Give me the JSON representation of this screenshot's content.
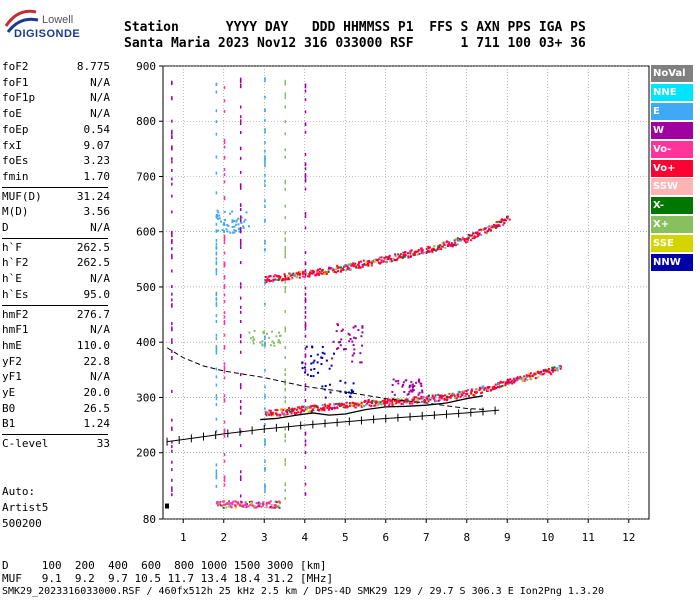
{
  "logo": {
    "word": "Lowell",
    "brand": "DIGISONDE"
  },
  "header": {
    "labels": "Station      YYYY DAY   DDD HHMMSS P1  FFS S AXN PPS IGA PS",
    "values": "Santa Maria 2023 Nov12 316 033000 RSF      1 711 100 03+ 36"
  },
  "params": [
    {
      "k": "foF2",
      "v": "8.775"
    },
    {
      "k": "foF1",
      "v": "N/A"
    },
    {
      "k": "foF1p",
      "v": "N/A"
    },
    {
      "k": "foE",
      "v": "N/A"
    },
    {
      "k": "foEp",
      "v": "0.54"
    },
    {
      "k": "fxI",
      "v": "9.07"
    },
    {
      "k": "foEs",
      "v": "3.23"
    },
    {
      "k": "fmin",
      "v": "1.70"
    },
    {
      "k": "MUF(D)",
      "v": "31.24"
    },
    {
      "k": "M(D)",
      "v": "3.56"
    },
    {
      "k": "D",
      "v": "N/A"
    },
    {
      "k": "h`F",
      "v": "262.5"
    },
    {
      "k": "h`F2",
      "v": "262.5"
    },
    {
      "k": "h`E",
      "v": "N/A"
    },
    {
      "k": "h`Es",
      "v": "95.0"
    },
    {
      "k": "hmF2",
      "v": "276.7"
    },
    {
      "k": "hmF1",
      "v": "N/A"
    },
    {
      "k": "hmE",
      "v": "110.0"
    },
    {
      "k": "yF2",
      "v": "22.8"
    },
    {
      "k": "yF1",
      "v": "N/A"
    },
    {
      "k": "yE",
      "v": "20.0"
    },
    {
      "k": "B0",
      "v": "26.5"
    },
    {
      "k": "B1",
      "v": "1.24"
    },
    {
      "k": "C-level",
      "v": "33"
    }
  ],
  "auto": {
    "l1": "Auto:",
    "l2": "Artist5",
    "l3": "500200"
  },
  "legend": [
    {
      "name": "NoVal",
      "bg": "#808080",
      "fg": "#ffffff"
    },
    {
      "name": "NNE",
      "bg": "#00e5ff",
      "fg": "#ffffff"
    },
    {
      "name": "E",
      "bg": "#3fa9f5",
      "fg": "#ffffff"
    },
    {
      "name": "W",
      "bg": "#a000a0",
      "fg": "#ffffff"
    },
    {
      "name": "Vo-",
      "bg": "#ff3399",
      "fg": "#ffffff"
    },
    {
      "name": "Vo+",
      "bg": "#ff0033",
      "fg": "#ffffff"
    },
    {
      "name": "SSW",
      "bg": "#ffb3b3",
      "fg": "#ffffff"
    },
    {
      "name": "X-",
      "bg": "#007700",
      "fg": "#ffffff"
    },
    {
      "name": "X+",
      "bg": "#88c060",
      "fg": "#ffffff"
    },
    {
      "name": "SSE",
      "bg": "#d4d400",
      "fg": "#ffffff"
    },
    {
      "name": "NNW",
      "bg": "#0000aa",
      "fg": "#ffffff"
    }
  ],
  "footer": {
    "dist": "D     100  200  400  600  800 1000 1500 3000 [km]",
    "muf": "MUF   9.1  9.2  9.7 10.5 11.7 13.4 18.4 31.2 [MHz]",
    "file": "SMK29_2023316033000.RSF / 460fx512h 25 kHz 2.5 km / DPS-4D SMK29 129 / 29.7 S 306.3 E Ion2Png 1.3.20"
  },
  "chart_data": {
    "type": "scatter",
    "xlim": [
      0.5,
      12.5
    ],
    "ylim": [
      80,
      900
    ],
    "x_ticks": [
      1,
      2,
      3,
      4,
      5,
      6,
      7,
      8,
      9,
      10,
      11,
      12
    ],
    "y_ticks": [
      80,
      200,
      300,
      400,
      500,
      600,
      700,
      800,
      900
    ],
    "grid": true,
    "legend_position": "right",
    "traces": [
      {
        "name": "o-trace F2",
        "color": "#ff0033",
        "points": [
          [
            3.0,
            272
          ],
          [
            3.5,
            276
          ],
          [
            4.0,
            280
          ],
          [
            4.5,
            284
          ],
          [
            5.0,
            288
          ],
          [
            5.5,
            291
          ],
          [
            6.0,
            293
          ],
          [
            6.5,
            296
          ],
          [
            7.0,
            299
          ],
          [
            7.5,
            303
          ],
          [
            8.0,
            309
          ],
          [
            8.5,
            318
          ],
          [
            9.0,
            328
          ],
          [
            9.5,
            339
          ],
          [
            10.0,
            349
          ],
          [
            10.3,
            355
          ]
        ]
      },
      {
        "name": "second hop",
        "color": "#ff0033",
        "points": [
          [
            3.0,
            515
          ],
          [
            4.0,
            525
          ],
          [
            5.0,
            537
          ],
          [
            6.0,
            552
          ],
          [
            7.0,
            568
          ],
          [
            8.0,
            590
          ],
          [
            8.5,
            605
          ],
          [
            9.0,
            625
          ]
        ]
      },
      {
        "name": "Es",
        "color": "#ff3399",
        "points": [
          [
            1.8,
            108
          ],
          [
            2.2,
            108
          ],
          [
            2.6,
            108
          ],
          [
            3.0,
            108
          ],
          [
            3.4,
            108
          ]
        ]
      }
    ],
    "profile": {
      "name": "electron density profile",
      "points": [
        [
          0.6,
          390
        ],
        [
          1.0,
          372
        ],
        [
          1.5,
          357
        ],
        [
          2.0,
          348
        ],
        [
          3.0,
          336
        ],
        [
          4.0,
          320
        ],
        [
          5.0,
          310
        ],
        [
          6.0,
          298
        ],
        [
          7.0,
          290
        ],
        [
          7.5,
          285
        ],
        [
          8.0,
          280
        ],
        [
          8.5,
          278
        ]
      ]
    },
    "virtual_height": {
      "points": [
        [
          0.6,
          220
        ],
        [
          1.0,
          224
        ],
        [
          2.0,
          234
        ],
        [
          3.0,
          243
        ],
        [
          4.0,
          250
        ],
        [
          5.0,
          256
        ],
        [
          6.0,
          262
        ],
        [
          7.0,
          267
        ],
        [
          8.0,
          272
        ],
        [
          8.8,
          277
        ]
      ]
    },
    "ionogram_trace": {
      "points": [
        [
          2.9,
          260
        ],
        [
          3.3,
          262
        ],
        [
          3.8,
          268
        ],
        [
          4.2,
          272
        ],
        [
          4.6,
          268
        ],
        [
          5.0,
          270
        ],
        [
          5.5,
          278
        ],
        [
          6.0,
          283
        ],
        [
          6.5,
          284
        ],
        [
          7.0,
          286
        ],
        [
          7.5,
          290
        ],
        [
          8.0,
          298
        ],
        [
          8.4,
          303
        ]
      ]
    }
  }
}
